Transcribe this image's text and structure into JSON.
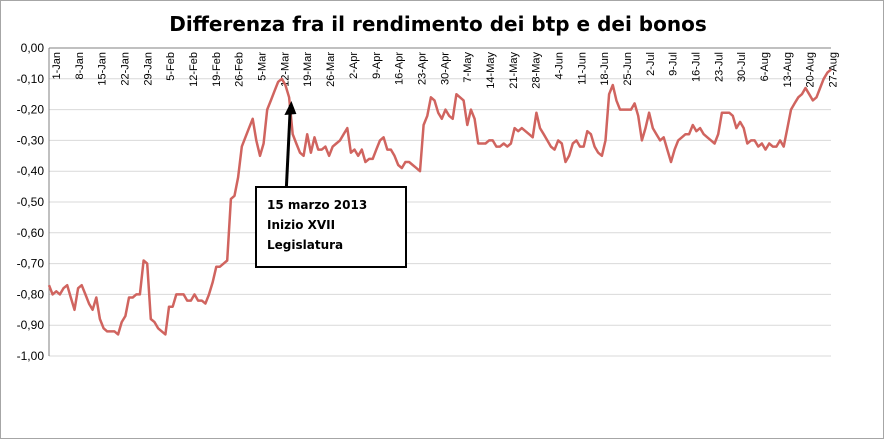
{
  "chart_data": {
    "type": "line",
    "title": "Differenza fra il rendimento dei btp e dei bonos",
    "xlabel": "",
    "ylabel": "",
    "ylim": [
      -1.0,
      0.0
    ],
    "y_ticks": [
      "0,00",
      "-0,10",
      "-0,20",
      "-0,30",
      "-0,40",
      "-0,50",
      "-0,60",
      "-0,70",
      "-0,80",
      "-0,90",
      "-1,00"
    ],
    "x_tick_labels": [
      "1-Jan",
      "8-Jan",
      "15-Jan",
      "22-Jan",
      "29-Jan",
      "5-Feb",
      "12-Feb",
      "19-Feb",
      "26-Feb",
      "5-Mar",
      "12-Mar",
      "19-Mar",
      "26-Mar",
      "2-Apr",
      "9-Apr",
      "16-Apr",
      "23-Apr",
      "30-Apr",
      "7-May",
      "14-May",
      "21-May",
      "28-May",
      "4-Jun",
      "11-Jun",
      "18-Jun",
      "25-Jun",
      "2-Jul",
      "9-Jul",
      "16-Jul",
      "23-Jul",
      "30-Jul",
      "6-Aug",
      "13-Aug",
      "20-Aug",
      "27-Aug"
    ],
    "grid": "horizontal",
    "legend": "none",
    "line_color": "#d0645f",
    "series": [
      {
        "values": [
          -0.77,
          -0.8,
          -0.79,
          -0.8,
          -0.78,
          -0.77,
          -0.81,
          -0.85,
          -0.78,
          -0.77,
          -0.8,
          -0.83,
          -0.85,
          -0.81,
          -0.88,
          -0.91,
          -0.92,
          -0.92,
          -0.92,
          -0.93,
          -0.89,
          -0.87,
          -0.81,
          -0.81,
          -0.8,
          -0.8,
          -0.69,
          -0.7,
          -0.88,
          -0.89,
          -0.91,
          -0.92,
          -0.93,
          -0.84,
          -0.84,
          -0.8,
          -0.8,
          -0.8,
          -0.82,
          -0.82,
          -0.8,
          -0.82,
          -0.82,
          -0.83,
          -0.8,
          -0.76,
          -0.71,
          -0.71,
          -0.7,
          -0.69,
          -0.49,
          -0.48,
          -0.42,
          -0.32,
          -0.29,
          -0.26,
          -0.23,
          -0.3,
          -0.35,
          -0.31,
          -0.2,
          -0.17,
          -0.14,
          -0.11,
          -0.1,
          -0.12,
          -0.16,
          -0.28,
          -0.31,
          -0.34,
          -0.35,
          -0.28,
          -0.34,
          -0.29,
          -0.33,
          -0.33,
          -0.32,
          -0.35,
          -0.32,
          -0.31,
          -0.3,
          -0.28,
          -0.26,
          -0.34,
          -0.33,
          -0.35,
          -0.33,
          -0.37,
          -0.36,
          -0.36,
          -0.33,
          -0.3,
          -0.29,
          -0.33,
          -0.33,
          -0.35,
          -0.38,
          -0.39,
          -0.37,
          -0.37,
          -0.38,
          -0.39,
          -0.4,
          -0.25,
          -0.22,
          -0.16,
          -0.17,
          -0.21,
          -0.23,
          -0.2,
          -0.22,
          -0.23,
          -0.15,
          -0.16,
          -0.17,
          -0.25,
          -0.2,
          -0.23,
          -0.31,
          -0.31,
          -0.31,
          -0.3,
          -0.3,
          -0.32,
          -0.32,
          -0.31,
          -0.32,
          -0.31,
          -0.26,
          -0.27,
          -0.26,
          -0.27,
          -0.28,
          -0.29,
          -0.21,
          -0.26,
          -0.28,
          -0.3,
          -0.32,
          -0.33,
          -0.3,
          -0.31,
          -0.37,
          -0.35,
          -0.31,
          -0.3,
          -0.32,
          -0.32,
          -0.27,
          -0.28,
          -0.32,
          -0.34,
          -0.35,
          -0.3,
          -0.15,
          -0.12,
          -0.17,
          -0.2,
          -0.2,
          -0.2,
          -0.2,
          -0.18,
          -0.22,
          -0.3,
          -0.26,
          -0.21,
          -0.26,
          -0.28,
          -0.3,
          -0.29,
          -0.33,
          -0.37,
          -0.33,
          -0.3,
          -0.29,
          -0.28,
          -0.28,
          -0.25,
          -0.27,
          -0.26,
          -0.28,
          -0.29,
          -0.3,
          -0.31,
          -0.28,
          -0.21,
          -0.21,
          -0.21,
          -0.22,
          -0.26,
          -0.24,
          -0.26,
          -0.31,
          -0.3,
          -0.3,
          -0.32,
          -0.31,
          -0.33,
          -0.31,
          -0.32,
          -0.32,
          -0.3,
          -0.32,
          -0.26,
          -0.2,
          -0.18,
          -0.16,
          -0.15,
          -0.13,
          -0.15,
          -0.17,
          -0.16,
          -0.13,
          -0.1,
          -0.08,
          -0.07
        ]
      }
    ],
    "annotation": {
      "lines": [
        "15 marzo 2013",
        "Inizio XVII",
        "Legislatura"
      ],
      "points_to_tick": "12-Mar"
    }
  }
}
